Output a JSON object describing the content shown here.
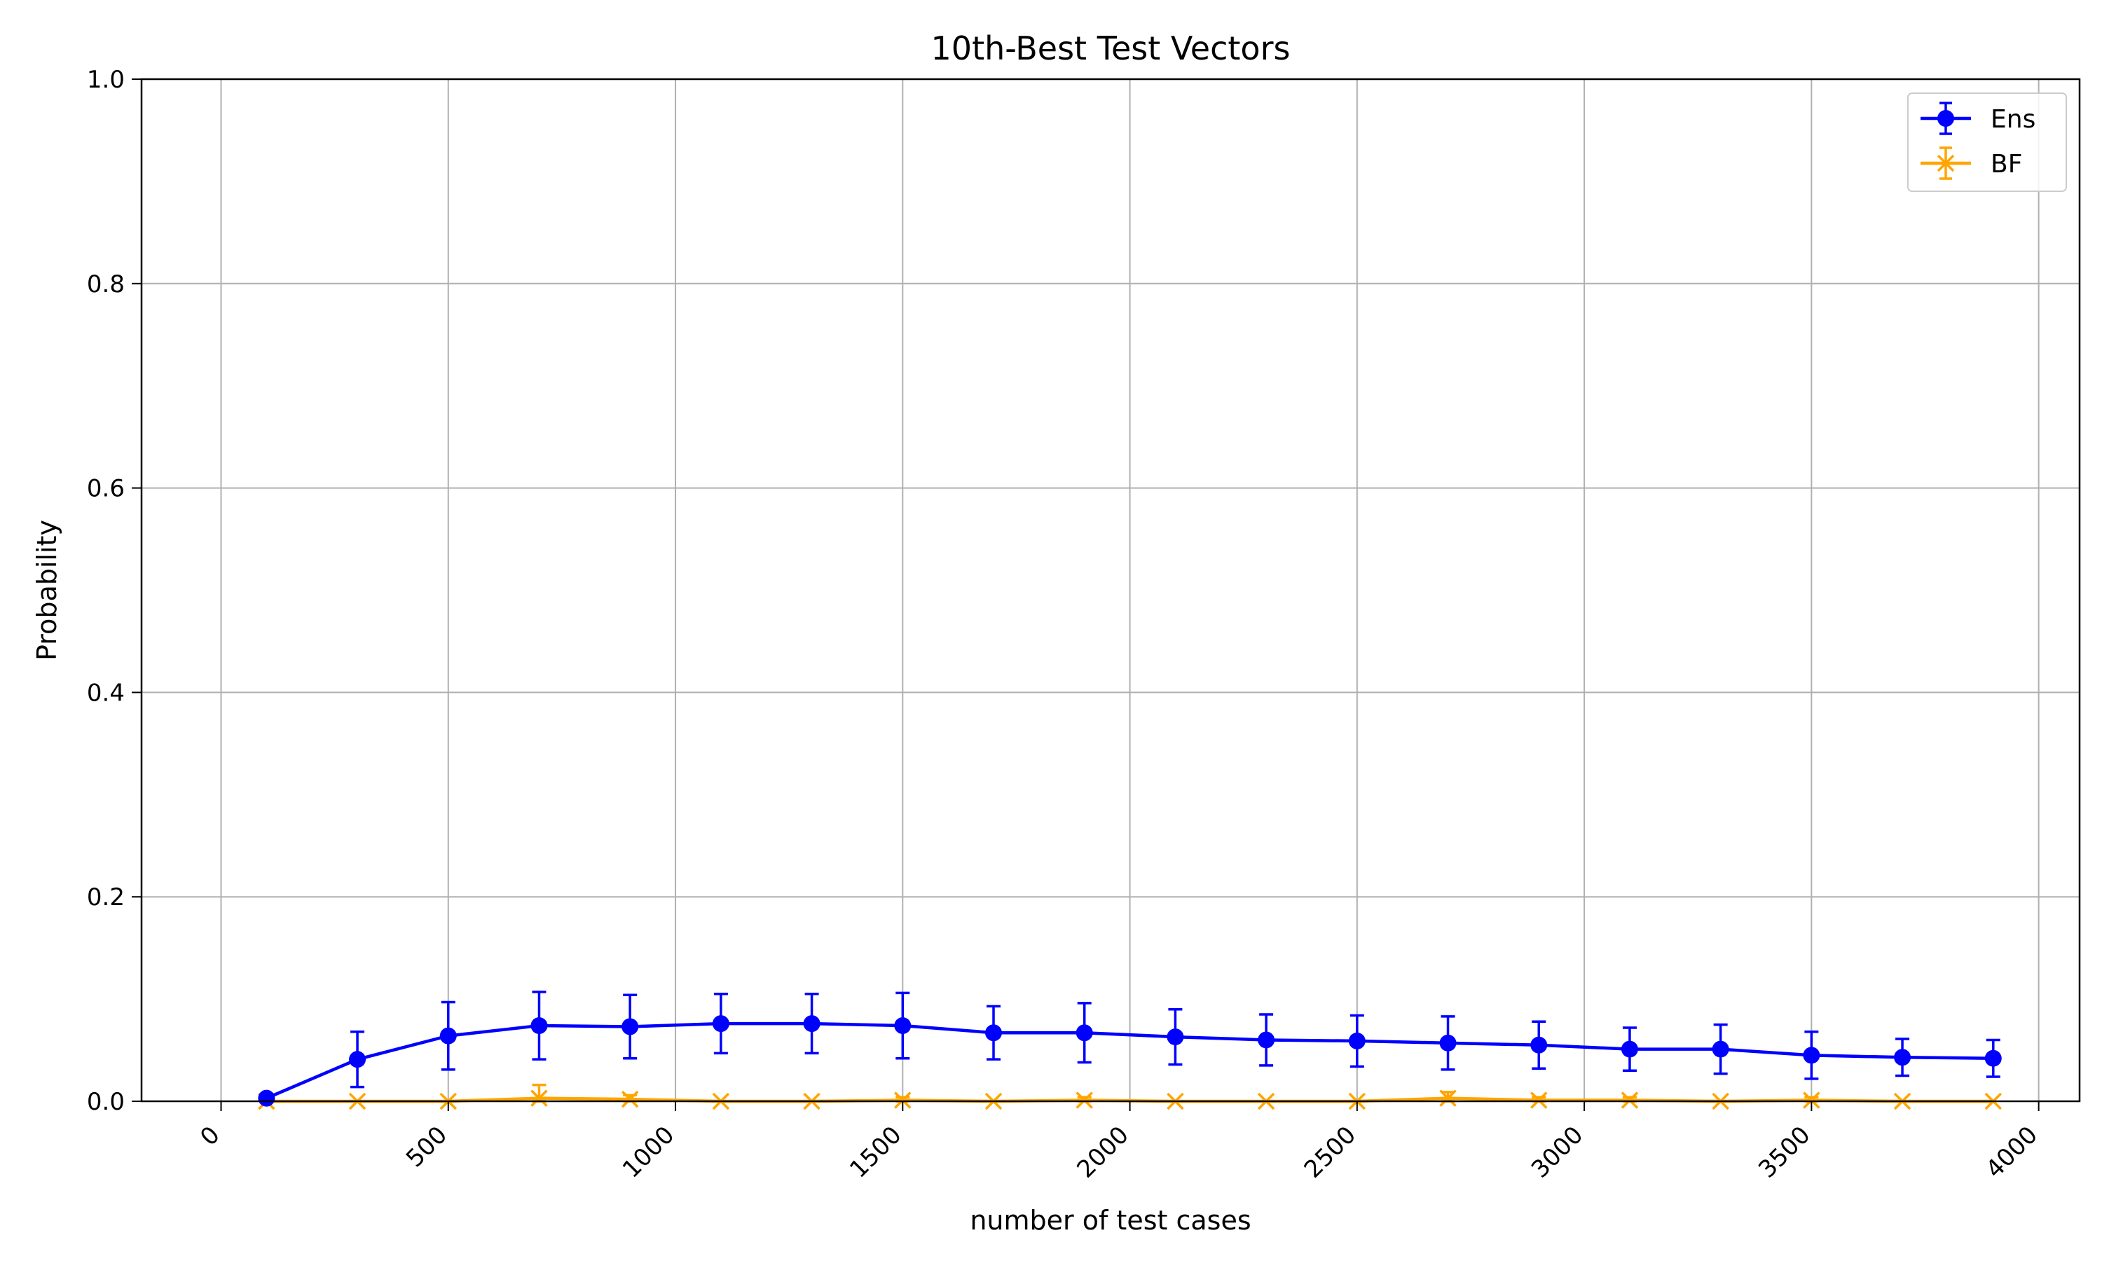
{
  "chart_data": {
    "type": "line",
    "title": "10th-Best Test Vectors",
    "xlabel": "number of test cases",
    "ylabel": "Probability",
    "xlim": [
      -175,
      4090
    ],
    "ylim": [
      0,
      1
    ],
    "xticks": [
      0,
      500,
      1000,
      1500,
      2000,
      2500,
      3000,
      3500,
      4000
    ],
    "yticks": [
      0.0,
      0.2,
      0.4,
      0.6,
      0.8,
      1.0
    ],
    "ytick_labels": [
      "0.0",
      "0.2",
      "0.4",
      "0.6",
      "0.8",
      "1.0"
    ],
    "xtick_rotation_deg": 45,
    "grid": true,
    "legend_position": "top-right",
    "x": [
      100,
      300,
      500,
      700,
      900,
      1100,
      1300,
      1500,
      1700,
      1900,
      2100,
      2300,
      2500,
      2700,
      2900,
      3100,
      3300,
      3500,
      3700,
      3900
    ],
    "series": [
      {
        "name": "Ens",
        "color": "#0000ff",
        "marker": "circle",
        "values": [
          0.003,
          0.041,
          0.064,
          0.074,
          0.073,
          0.076,
          0.076,
          0.074,
          0.067,
          0.067,
          0.063,
          0.06,
          0.059,
          0.057,
          0.055,
          0.051,
          0.051,
          0.045,
          0.043,
          0.042
        ],
        "error": [
          0.003,
          0.027,
          0.033,
          0.033,
          0.031,
          0.029,
          0.029,
          0.032,
          0.026,
          0.029,
          0.027,
          0.025,
          0.025,
          0.026,
          0.023,
          0.021,
          0.024,
          0.023,
          0.018,
          0.018
        ]
      },
      {
        "name": "BF",
        "color": "#ffa500",
        "marker": "x",
        "values": [
          0.0,
          0.0,
          0.0,
          0.003,
          0.002,
          0.0,
          0.0,
          0.001,
          0.0,
          0.001,
          0.0,
          0.0,
          0.0,
          0.003,
          0.001,
          0.001,
          0.0,
          0.001,
          0.0,
          0.0
        ],
        "error": [
          0.0,
          0.0,
          0.0,
          0.013,
          0.004,
          0.0,
          0.0,
          0.003,
          0.0,
          0.003,
          0.0,
          0.0,
          0.0,
          0.006,
          0.003,
          0.003,
          0.0,
          0.003,
          0.0,
          0.0
        ]
      }
    ]
  }
}
